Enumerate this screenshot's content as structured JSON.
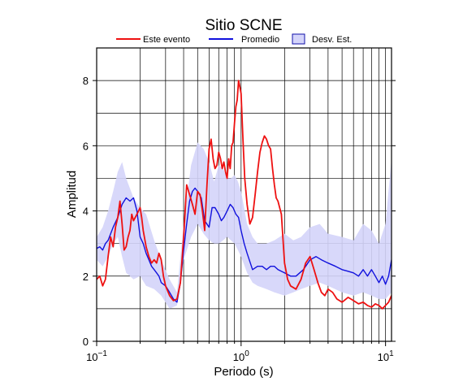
{
  "chart_data": {
    "type": "line",
    "title": "Sitio SCNE",
    "xlabel": "Periodo (s)",
    "ylabel": "Amplitud",
    "xscale": "log",
    "xlim": [
      0.1,
      11
    ],
    "ylim": [
      0,
      9
    ],
    "xticks": [
      {
        "value": 0.1,
        "base": "10",
        "exp": "−1"
      },
      {
        "value": 1,
        "label": "10",
        "exp": "0"
      },
      {
        "value": 10,
        "label": "10",
        "exp": "1"
      }
    ],
    "yticks": [
      0,
      2,
      4,
      6,
      8
    ],
    "grid": true,
    "legend_position": "top",
    "colors": {
      "event": "#ee1111",
      "mean": "#1111dd",
      "std_fill": "#d4d4fa",
      "std_edge": "#1111aa"
    },
    "legend": [
      {
        "label": "Este evento",
        "kind": "line",
        "color": "#ee1111"
      },
      {
        "label": "Promedio",
        "kind": "line",
        "color": "#1111dd"
      },
      {
        "label": "Desv. Est.",
        "kind": "box",
        "color": "#d4d4fa"
      }
    ],
    "band": {
      "name": "Desv. Est.",
      "x": [
        0.1,
        0.11,
        0.12,
        0.13,
        0.14,
        0.15,
        0.16,
        0.18,
        0.2,
        0.22,
        0.25,
        0.28,
        0.32,
        0.36,
        0.4,
        0.45,
        0.5,
        0.55,
        0.6,
        0.65,
        0.7,
        0.75,
        0.8,
        0.85,
        0.9,
        0.95,
        1.0,
        1.1,
        1.2,
        1.3,
        1.5,
        1.7,
        2.0,
        2.3,
        2.6,
        3.0,
        3.5,
        4.0,
        5.0,
        6.0,
        7.0,
        8.0,
        9.0,
        10.0,
        11.0
      ],
      "upper": [
        3.2,
        3.5,
        4.0,
        4.6,
        5.2,
        5.5,
        5.0,
        4.4,
        4.1,
        3.9,
        3.1,
        2.5,
        1.9,
        1.5,
        3.6,
        5.4,
        6.1,
        5.9,
        5.5,
        4.9,
        5.4,
        5.3,
        5.0,
        5.0,
        5.1,
        4.9,
        4.6,
        3.6,
        3.2,
        3.0,
        3.0,
        3.1,
        3.3,
        3.1,
        3.2,
        3.5,
        3.6,
        3.3,
        3.2,
        3.1,
        3.6,
        3.4,
        3.0,
        3.6,
        5.6
      ],
      "lower": [
        2.5,
        2.3,
        2.6,
        3.0,
        3.2,
        2.6,
        2.1,
        1.9,
        2.0,
        1.7,
        1.6,
        1.4,
        1.0,
        1.1,
        2.5,
        3.2,
        3.6,
        3.3,
        3.1,
        3.0,
        3.0,
        3.1,
        3.2,
        3.1,
        3.0,
        2.8,
        2.6,
        2.1,
        1.8,
        1.7,
        1.6,
        1.5,
        1.4,
        1.5,
        1.6,
        1.7,
        1.8,
        1.7,
        1.5,
        1.4,
        1.5,
        1.4,
        1.3,
        1.3,
        1.5
      ]
    },
    "series": [
      {
        "name": "Este evento",
        "color": "#ee1111",
        "x": [
          0.1,
          0.105,
          0.11,
          0.115,
          0.12,
          0.125,
          0.13,
          0.135,
          0.14,
          0.145,
          0.15,
          0.155,
          0.16,
          0.165,
          0.17,
          0.175,
          0.18,
          0.19,
          0.2,
          0.205,
          0.21,
          0.22,
          0.23,
          0.24,
          0.25,
          0.26,
          0.27,
          0.28,
          0.29,
          0.3,
          0.32,
          0.34,
          0.36,
          0.38,
          0.4,
          0.42,
          0.44,
          0.46,
          0.48,
          0.5,
          0.52,
          0.54,
          0.56,
          0.58,
          0.6,
          0.62,
          0.64,
          0.66,
          0.68,
          0.7,
          0.72,
          0.74,
          0.76,
          0.78,
          0.8,
          0.82,
          0.84,
          0.86,
          0.88,
          0.9,
          0.92,
          0.94,
          0.96,
          0.98,
          1.0,
          1.03,
          1.06,
          1.1,
          1.15,
          1.2,
          1.25,
          1.3,
          1.35,
          1.4,
          1.45,
          1.5,
          1.55,
          1.6,
          1.65,
          1.7,
          1.75,
          1.8,
          1.9,
          2.0,
          2.1,
          2.2,
          2.4,
          2.6,
          2.8,
          3.0,
          3.2,
          3.4,
          3.6,
          3.8,
          4.0,
          4.3,
          4.6,
          5.0,
          5.5,
          6.0,
          6.5,
          7.0,
          7.5,
          8.0,
          8.5,
          9.0,
          9.5,
          10.0,
          10.5,
          11.0
        ],
        "y": [
          1.9,
          2.0,
          1.7,
          1.9,
          2.6,
          3.2,
          2.9,
          3.5,
          3.8,
          4.3,
          3.6,
          2.8,
          2.9,
          3.2,
          3.4,
          3.9,
          3.7,
          3.9,
          4.1,
          3.8,
          3.4,
          2.9,
          2.6,
          2.4,
          2.5,
          2.4,
          2.7,
          2.5,
          2.0,
          1.7,
          1.4,
          1.25,
          1.3,
          1.8,
          3.2,
          4.8,
          4.5,
          4.2,
          3.9,
          4.6,
          4.5,
          4.0,
          3.4,
          4.8,
          5.9,
          6.2,
          5.6,
          5.3,
          5.4,
          5.8,
          5.6,
          5.3,
          5.5,
          5.2,
          5.0,
          5.6,
          5.3,
          6.0,
          6.1,
          6.7,
          7.2,
          7.4,
          8.0,
          7.8,
          7.6,
          6.2,
          5.0,
          4.2,
          3.6,
          3.8,
          4.5,
          5.2,
          5.8,
          6.1,
          6.3,
          6.2,
          6.0,
          5.9,
          5.3,
          4.8,
          4.4,
          4.3,
          3.9,
          2.4,
          1.9,
          1.7,
          1.6,
          1.9,
          2.4,
          2.6,
          2.2,
          1.8,
          1.5,
          1.4,
          1.6,
          1.5,
          1.3,
          1.2,
          1.35,
          1.25,
          1.15,
          1.2,
          1.1,
          1.05,
          1.15,
          1.1,
          1.0,
          1.1,
          1.2,
          1.4
        ]
      },
      {
        "name": "Promedio",
        "color": "#1111dd",
        "x": [
          0.1,
          0.105,
          0.11,
          0.115,
          0.12,
          0.13,
          0.14,
          0.15,
          0.16,
          0.17,
          0.18,
          0.19,
          0.2,
          0.21,
          0.22,
          0.23,
          0.24,
          0.25,
          0.26,
          0.27,
          0.28,
          0.3,
          0.32,
          0.34,
          0.36,
          0.38,
          0.4,
          0.42,
          0.44,
          0.46,
          0.48,
          0.5,
          0.53,
          0.56,
          0.6,
          0.63,
          0.66,
          0.7,
          0.73,
          0.76,
          0.8,
          0.84,
          0.88,
          0.92,
          0.96,
          1.0,
          1.05,
          1.1,
          1.2,
          1.3,
          1.4,
          1.5,
          1.6,
          1.7,
          1.8,
          2.0,
          2.2,
          2.4,
          2.7,
          3.0,
          3.3,
          3.6,
          4.0,
          4.5,
          5.0,
          5.5,
          6.0,
          6.5,
          7.0,
          7.5,
          8.0,
          8.5,
          9.0,
          9.5,
          10.0,
          10.5,
          11.0
        ],
        "y": [
          2.85,
          2.9,
          2.8,
          3.0,
          3.1,
          3.5,
          3.8,
          4.2,
          4.4,
          4.3,
          4.4,
          4.0,
          3.2,
          3.0,
          2.7,
          2.5,
          2.3,
          2.2,
          2.1,
          2.0,
          1.8,
          1.7,
          1.5,
          1.3,
          1.2,
          1.8,
          2.8,
          3.6,
          4.3,
          4.6,
          4.7,
          4.6,
          4.4,
          3.7,
          3.5,
          4.1,
          4.1,
          3.9,
          3.7,
          3.8,
          4.0,
          4.2,
          4.1,
          3.9,
          3.8,
          3.4,
          3.0,
          2.7,
          2.2,
          2.3,
          2.3,
          2.2,
          2.3,
          2.3,
          2.2,
          2.1,
          2.0,
          2.0,
          2.2,
          2.5,
          2.6,
          2.5,
          2.4,
          2.3,
          2.2,
          2.15,
          2.1,
          2.0,
          2.2,
          2.0,
          2.2,
          2.0,
          1.8,
          2.0,
          1.75,
          2.0,
          2.5
        ]
      }
    ]
  }
}
